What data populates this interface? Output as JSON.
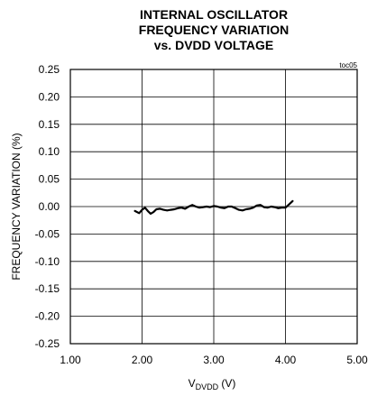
{
  "chart_data": {
    "type": "line",
    "title_lines": [
      "INTERNAL OSCILLATOR",
      "FREQUENCY VARIATION",
      "vs. DVDD VOLTAGE"
    ],
    "figure_id": "toc05",
    "xlabel_main": "V",
    "xlabel_sub": "DVDD",
    "xlabel_unit": " (V)",
    "ylabel": "FREQUENCY VARIATION (%)",
    "xlim": [
      1.0,
      5.0
    ],
    "ylim": [
      -0.25,
      0.25
    ],
    "x_ticks": [
      "1.00",
      "2.00",
      "3.00",
      "4.00",
      "5.00"
    ],
    "y_ticks": [
      "0.25",
      "0.20",
      "0.15",
      "0.10",
      "0.05",
      "0.00",
      "-0.05",
      "-0.10",
      "-0.15",
      "-0.20",
      "-0.25"
    ],
    "grid": true,
    "series": [
      {
        "color": "#000000",
        "x": [
          1.9,
          1.96,
          2.0,
          2.04,
          2.08,
          2.12,
          2.16,
          2.2,
          2.25,
          2.3,
          2.35,
          2.4,
          2.45,
          2.5,
          2.55,
          2.6,
          2.65,
          2.7,
          2.75,
          2.8,
          2.85,
          2.9,
          2.95,
          3.0,
          3.05,
          3.1,
          3.15,
          3.2,
          3.25,
          3.3,
          3.35,
          3.4,
          3.45,
          3.5,
          3.55,
          3.6,
          3.65,
          3.7,
          3.75,
          3.8,
          3.85,
          3.9,
          3.95,
          4.0,
          4.05,
          4.1
        ],
        "y": [
          -0.008,
          -0.012,
          -0.006,
          -0.002,
          -0.008,
          -0.013,
          -0.01,
          -0.005,
          -0.004,
          -0.006,
          -0.007,
          -0.006,
          -0.005,
          -0.003,
          -0.002,
          -0.004,
          0.0,
          0.003,
          0.0,
          -0.002,
          -0.001,
          0.0,
          -0.001,
          0.001,
          0.0,
          -0.002,
          -0.003,
          0.0,
          0.0,
          -0.003,
          -0.006,
          -0.007,
          -0.005,
          -0.004,
          -0.002,
          0.002,
          0.003,
          -0.001,
          -0.002,
          0.0,
          -0.001,
          -0.003,
          -0.002,
          -0.002,
          0.004,
          0.01
        ]
      }
    ]
  }
}
